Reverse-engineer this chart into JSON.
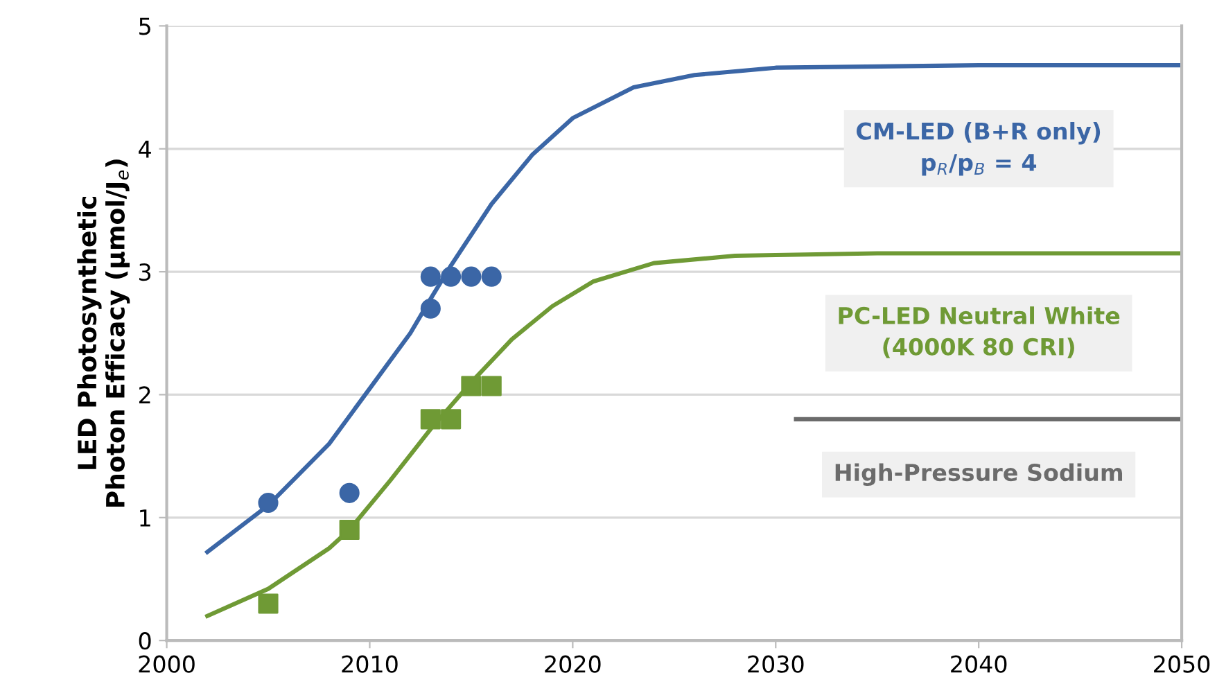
{
  "chart_data": {
    "type": "line",
    "ylabel": "LED Photosynthetic\nPhoton Efficacy (µmol/J$_{e}$)",
    "xlim": [
      2000,
      2050
    ],
    "xticks": [
      2000,
      2010,
      2020,
      2030,
      2040,
      2050
    ],
    "ylim": [
      0,
      5
    ],
    "yticks": [
      0,
      1,
      2,
      3,
      4,
      5
    ],
    "grid": "y",
    "legend": false,
    "series": [
      {
        "name": "CM-LED (B+R only)\np$_{R}$/p$_{B}$ = 4",
        "color": "#3b66a6",
        "x": [
          2002,
          2005,
          2008,
          2010,
          2012,
          2013,
          2014,
          2016,
          2018,
          2020,
          2023,
          2026,
          2030,
          2040,
          2050
        ],
        "values": [
          0.72,
          1.1,
          1.6,
          2.05,
          2.5,
          2.78,
          3.05,
          3.55,
          3.95,
          4.25,
          4.5,
          4.6,
          4.66,
          4.68,
          4.68
        ]
      },
      {
        "name": "PC-LED Neutral White\n(4000K 80 CRI)",
        "color": "#6f9a35",
        "x": [
          2002,
          2005,
          2008,
          2009,
          2011,
          2013,
          2015,
          2017,
          2019,
          2021,
          2024,
          2028,
          2035,
          2050
        ],
        "values": [
          0.2,
          0.42,
          0.75,
          0.9,
          1.3,
          1.72,
          2.1,
          2.45,
          2.72,
          2.92,
          3.07,
          3.13,
          3.15,
          3.15
        ]
      },
      {
        "name": "High-Pressure Sodium",
        "color": "#6b6b6b",
        "x": [
          2031,
          2050
        ],
        "values": [
          1.8,
          1.8
        ]
      },
      {
        "type": "scatter",
        "marker": "circle",
        "color": "#3b66a6",
        "x": [
          2005,
          2009,
          2013,
          2013,
          2014,
          2015,
          2016
        ],
        "values": [
          1.12,
          1.2,
          2.7,
          2.96,
          2.96,
          2.96,
          2.96
        ]
      },
      {
        "type": "scatter",
        "marker": "square",
        "color": "#6f9a35",
        "x": [
          2005,
          2009,
          2013,
          2014,
          2015,
          2016
        ],
        "values": [
          0.3,
          0.9,
          1.8,
          1.8,
          2.07,
          2.07
        ]
      }
    ]
  }
}
